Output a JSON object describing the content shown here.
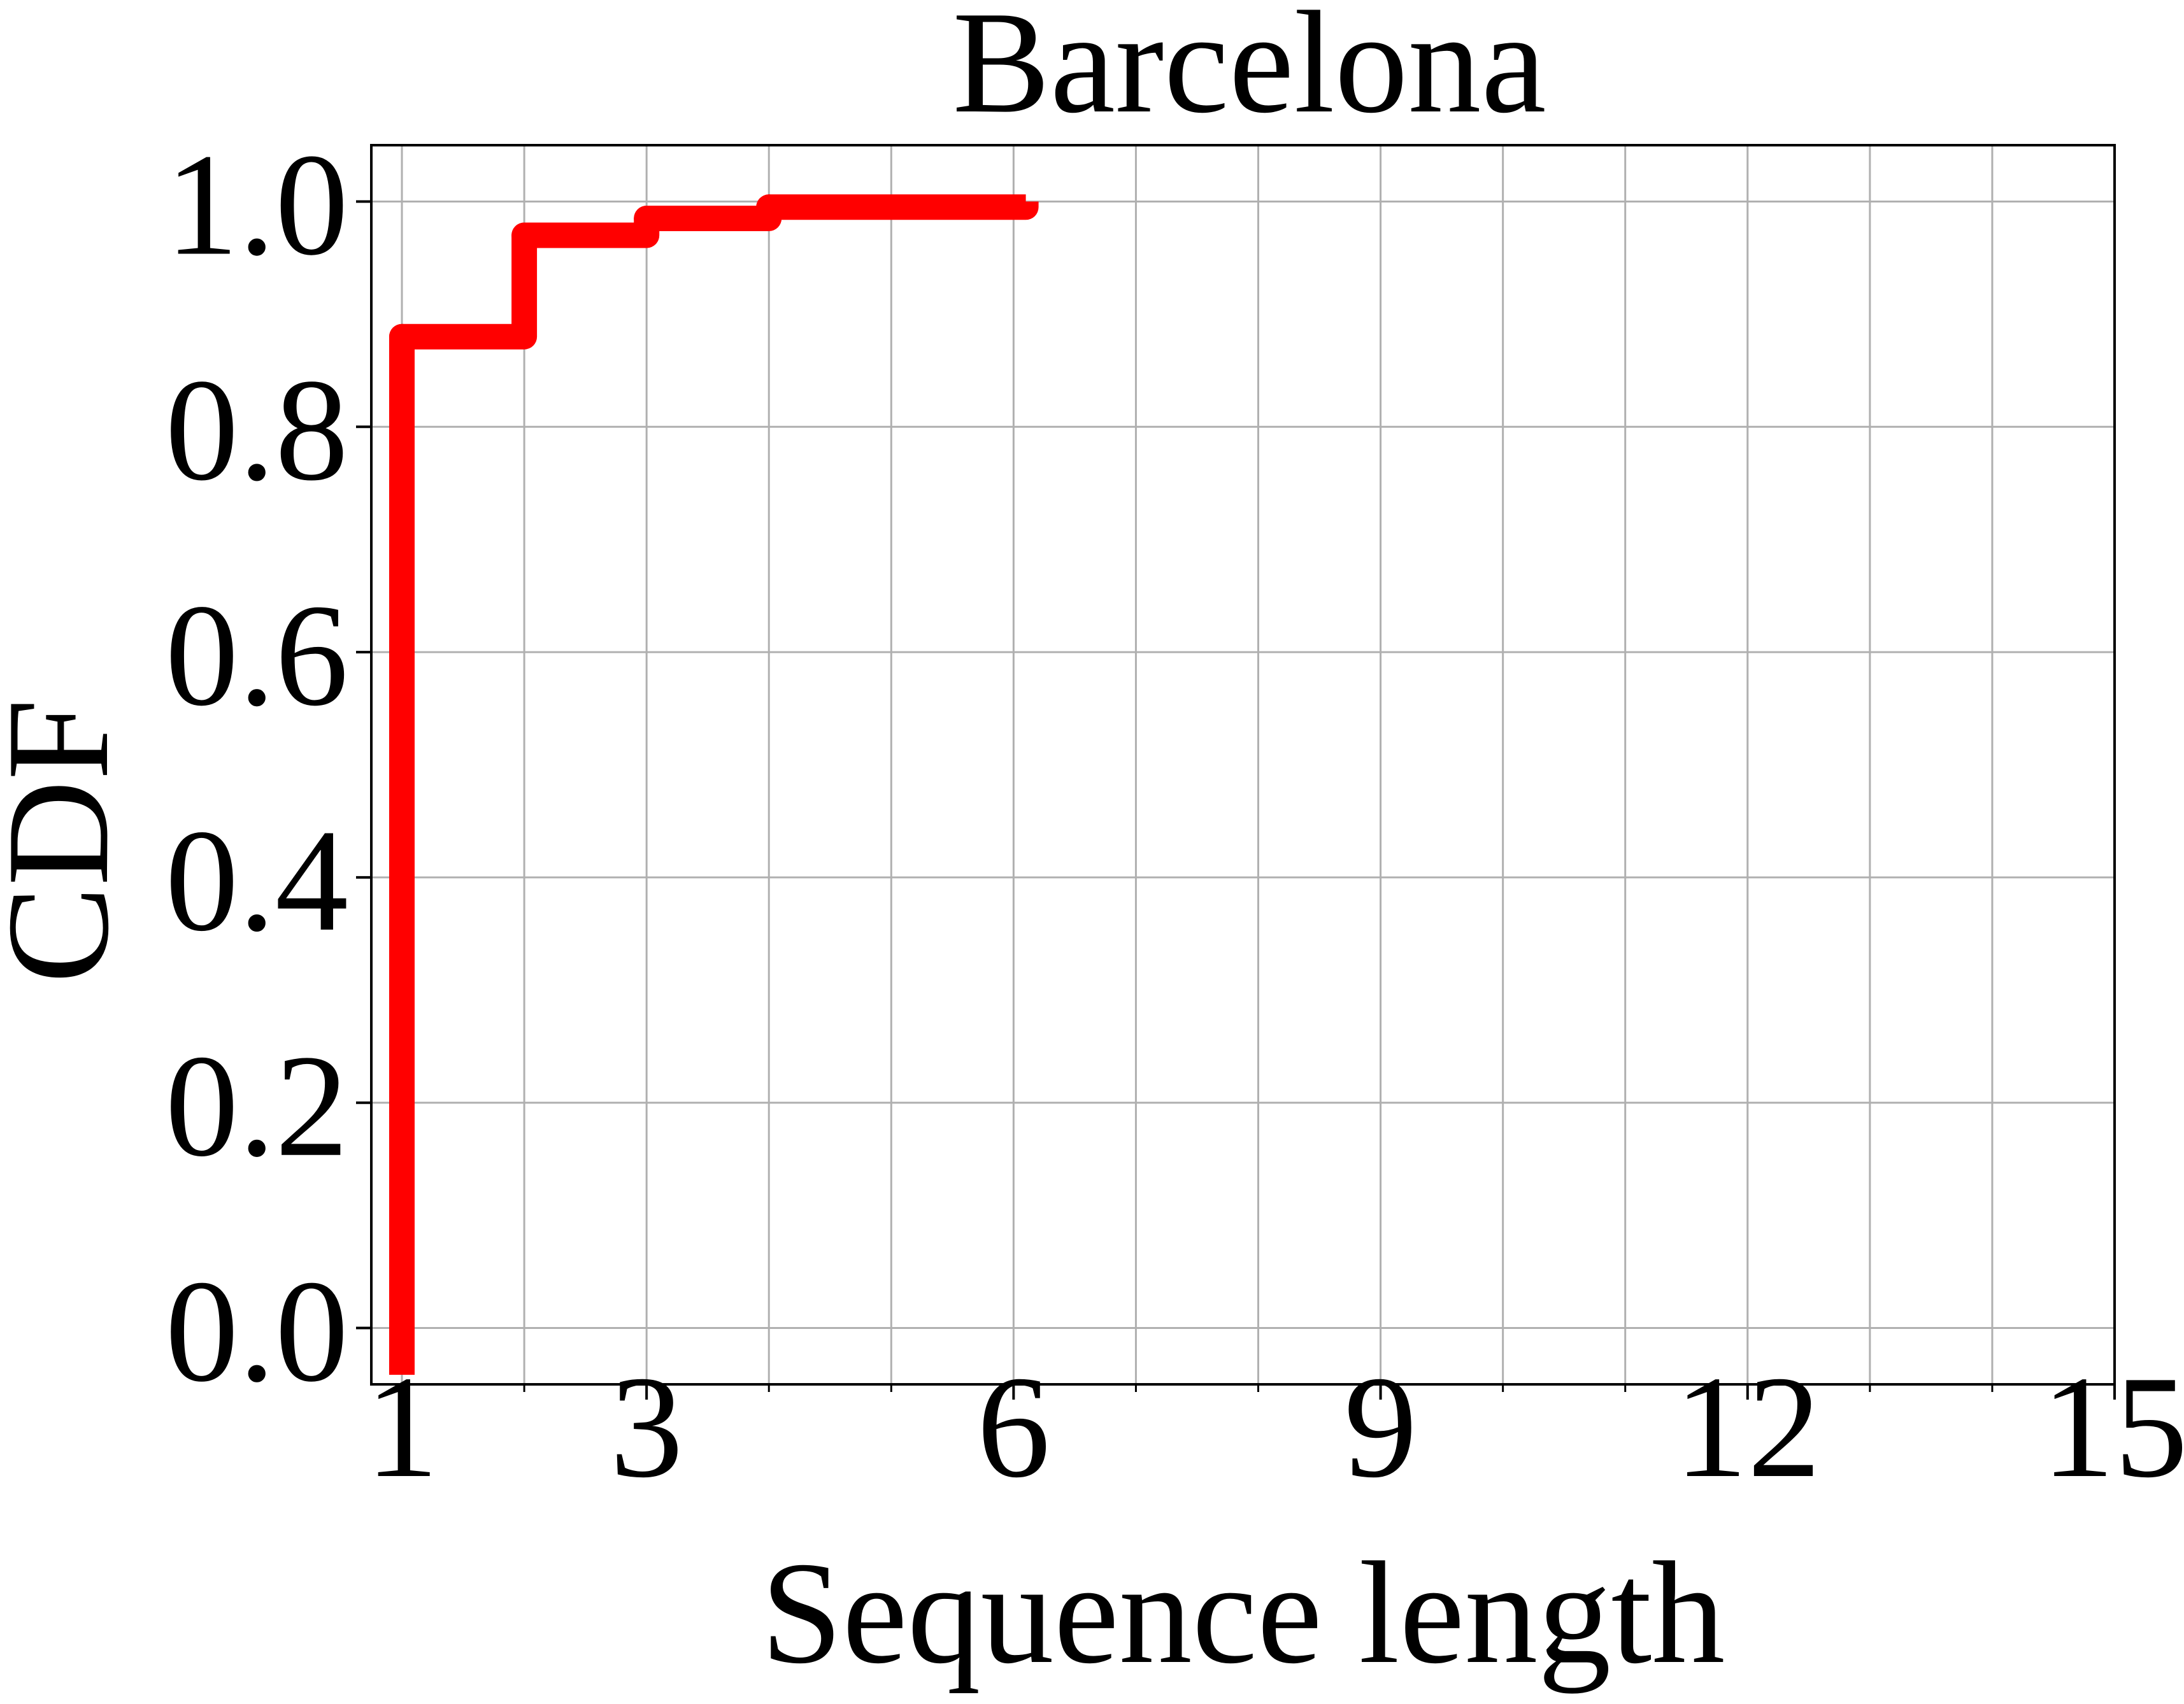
{
  "chart_data": {
    "type": "line",
    "title": "Barcelona",
    "xlabel": "Sequence length",
    "ylabel": "CDF",
    "xlim": [
      0.75,
      15
    ],
    "ylim": [
      -0.05,
      1.05
    ],
    "xticks": [
      1,
      3,
      6,
      9,
      12,
      15
    ],
    "xtick_labels": [
      "1",
      "3",
      "6",
      "9",
      "12",
      "15"
    ],
    "x_minor_ticks": [
      2,
      4,
      5,
      7,
      8,
      10,
      11,
      13,
      14
    ],
    "yticks": [
      0.0,
      0.2,
      0.4,
      0.6,
      0.8,
      1.0
    ],
    "ytick_labels": [
      "0.0",
      "0.2",
      "0.4",
      "0.6",
      "0.8",
      "1.0"
    ],
    "grid": true,
    "step": "post",
    "series": [
      {
        "name": "",
        "color": "#ff0000",
        "x": [
          1,
          2,
          3,
          4,
          6.1
        ],
        "y": [
          0.88,
          0.97,
          0.985,
          0.995,
          1.0
        ]
      }
    ]
  }
}
